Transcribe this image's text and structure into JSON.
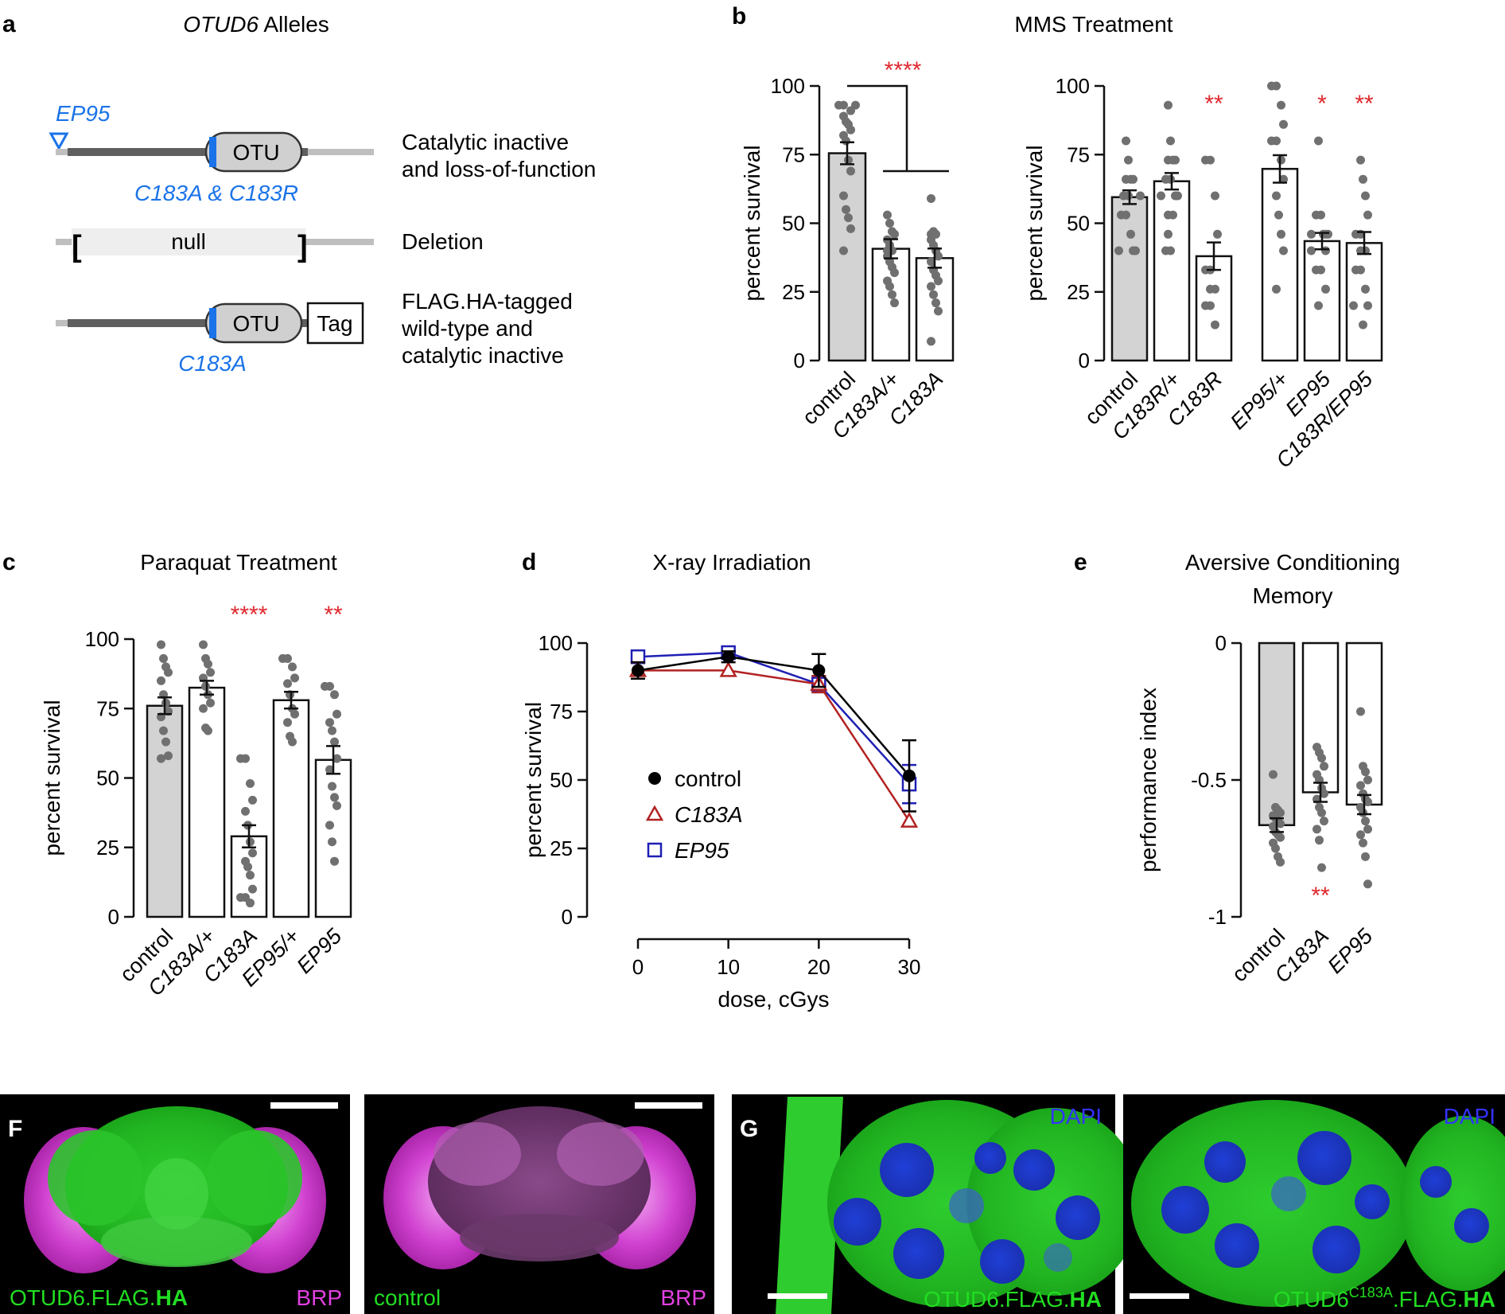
{
  "panels": {
    "a": {
      "letter": "a",
      "title_gene": "OTUD6",
      "title_rest": " Alleles",
      "ep_label": "EP95",
      "otu": "OTU",
      "mut1": "C183A & C183R",
      "mut2": "C183A",
      "null_label": "null",
      "tag_label": "Tag",
      "desc1": [
        "Catalytic inactive",
        "and loss-of-function"
      ],
      "desc2": [
        "Deletion"
      ],
      "desc3": [
        "FLAG.HA-tagged",
        "wild-type and",
        "catalytic inactive"
      ],
      "colors": {
        "blue": "#1a73e8",
        "dark": "#5f5f5f",
        "light": "#bfbfbf",
        "box": "#d0d0d0"
      }
    },
    "b": {
      "letter": "b",
      "title": "MMS Treatment"
    },
    "c": {
      "letter": "c",
      "title": "Paraquat Treatment"
    },
    "d": {
      "letter": "d",
      "title": "X-ray Irradiation"
    },
    "e": {
      "letter": "e",
      "title": [
        "Aversive Conditioning",
        "Memory"
      ]
    },
    "f": {
      "letter": "F",
      "img1": {
        "label_main": "OTUD6.FLAG.",
        "label_bold": "HA",
        "label_right": "BRP"
      },
      "img2": {
        "label_main": "control",
        "label_right": "BRP"
      }
    },
    "g": {
      "letter": "G",
      "img1": {
        "label_main": "OTUD6.FLAG.",
        "label_bold": "HA",
        "label_top": "DAPI"
      },
      "img2": {
        "label_main": "OTUD6",
        "label_sup": "C183A",
        "label_mid": ".FLAG.",
        "label_bold": "HA",
        "label_top": "DAPI"
      }
    }
  },
  "chart_data": [
    {
      "id": "b-left",
      "type": "bar",
      "ylabel": "percent survival",
      "ylim": [
        0,
        100
      ],
      "yticks": [
        0,
        25,
        50,
        75,
        100
      ],
      "categories": [
        "control",
        "C183A/+",
        "C183A"
      ],
      "italic": [
        false,
        true,
        true
      ],
      "values": [
        75.5,
        40.7,
        37.3
      ],
      "sem": [
        4,
        3.5,
        3.5
      ],
      "fills": [
        "#d3d3d3",
        "#ffffff",
        "#ffffff"
      ],
      "points": [
        [
          93,
          93,
          93,
          91,
          89,
          87,
          86,
          84,
          82,
          80,
          73,
          69,
          60,
          55,
          52,
          48,
          40
        ],
        [
          53,
          50,
          47,
          46,
          44,
          42,
          40,
          40,
          38,
          36,
          34,
          32,
          29,
          27,
          24,
          21
        ],
        [
          59,
          47,
          46,
          46,
          44,
          42,
          40,
          38,
          36,
          33,
          31,
          29,
          27,
          24,
          21,
          18,
          7
        ]
      ],
      "annotations": [
        {
          "text": "****",
          "x": 0.5
        }
      ]
    },
    {
      "id": "b-right",
      "type": "bar",
      "ylabel": "percent survival",
      "ylim": [
        0,
        100
      ],
      "yticks": [
        0,
        25,
        50,
        75,
        100
      ],
      "categories": [
        "control",
        "C183R/+",
        "C183R",
        "EP95/+",
        "EP95",
        "C183R/EP95"
      ],
      "italic": [
        false,
        true,
        true,
        true,
        true,
        true
      ],
      "values": [
        59.5,
        65.3,
        38,
        69.8,
        43.5,
        42.8
      ],
      "sem": [
        2.5,
        3,
        5,
        5,
        3,
        4
      ],
      "fills": [
        "#d3d3d3",
        "#ffffff",
        "#ffffff",
        "#ffffff",
        "#ffffff",
        "#ffffff"
      ],
      "points": [
        [
          80,
          73,
          66,
          66,
          66,
          60,
          60,
          60,
          53,
          53,
          46,
          40,
          40,
          40
        ],
        [
          93,
          80,
          73,
          73,
          73,
          66,
          66,
          60,
          60,
          60,
          53,
          53,
          46,
          40,
          40
        ],
        [
          73,
          73,
          60,
          46,
          33,
          33,
          26,
          26,
          20,
          20,
          13
        ],
        [
          100,
          100,
          93,
          86,
          80,
          80,
          73,
          66,
          60,
          53,
          46,
          40,
          26
        ],
        [
          80,
          53,
          53,
          46,
          46,
          46,
          46,
          40,
          40,
          33,
          33,
          26,
          20
        ],
        [
          73,
          66,
          60,
          53,
          46,
          46,
          40,
          40,
          33,
          33,
          26,
          20,
          20,
          13
        ]
      ],
      "annotations": [
        {
          "text": "**",
          "x": 2
        },
        {
          "text": "*",
          "x": 4
        },
        {
          "text": "**",
          "x": 5
        }
      ]
    },
    {
      "id": "c",
      "type": "bar",
      "ylabel": "percent survival",
      "ylim": [
        0,
        100
      ],
      "yticks": [
        0,
        25,
        50,
        75,
        100
      ],
      "categories": [
        "control",
        "C183A/+",
        "C183A",
        "EP95/+",
        "EP95"
      ],
      "italic": [
        false,
        true,
        true,
        true,
        true
      ],
      "values": [
        76,
        82.5,
        29,
        78,
        56.5
      ],
      "sem": [
        3,
        2.5,
        4,
        3,
        5
      ],
      "fills": [
        "#d3d3d3",
        "#ffffff",
        "#ffffff",
        "#ffffff",
        "#ffffff"
      ],
      "points": [
        [
          98,
          93,
          90,
          88,
          85,
          80,
          77,
          74,
          72,
          67,
          63,
          58,
          57
        ],
        [
          98,
          93,
          91,
          88,
          86,
          83,
          80,
          77,
          75,
          68,
          67
        ],
        [
          57,
          57,
          48,
          42,
          38,
          33,
          27,
          23,
          20,
          18,
          15,
          10,
          7,
          7,
          5
        ],
        [
          93,
          93,
          90,
          86,
          84,
          80,
          75,
          73,
          70,
          65,
          63
        ],
        [
          83,
          83,
          80,
          73,
          70,
          67,
          63,
          57,
          53,
          47,
          43,
          40,
          33,
          27,
          20
        ]
      ],
      "annotations": [
        {
          "text": "****",
          "x": 2
        },
        {
          "text": "**",
          "x": 4
        }
      ]
    },
    {
      "id": "d",
      "type": "line",
      "xlabel": "dose, cGys",
      "ylabel": "percent survival",
      "xlim": [
        0,
        30
      ],
      "ylim": [
        0,
        100
      ],
      "xticks": [
        0,
        10,
        20,
        30
      ],
      "yticks": [
        0,
        25,
        50,
        75,
        100
      ],
      "series": [
        {
          "name": "control",
          "marker": "circle",
          "color": "#000000",
          "x": [
            0,
            10,
            20,
            30
          ],
          "y": [
            90,
            95,
            90,
            51.5
          ],
          "err": [
            3,
            2,
            6,
            13
          ]
        },
        {
          "name": "C183A",
          "marker": "triangle",
          "color": "#b22222",
          "x": [
            0,
            10,
            20,
            30
          ],
          "y": [
            90,
            90,
            85,
            35
          ],
          "err": [
            3,
            0,
            3,
            0
          ]
        },
        {
          "name": "EP95",
          "marker": "square",
          "color": "#1f1fb4",
          "x": [
            0,
            10,
            20,
            30
          ],
          "y": [
            95,
            96.5,
            85,
            48.5
          ],
          "err": [
            0,
            0,
            3,
            7
          ]
        }
      ]
    },
    {
      "id": "e",
      "type": "bar",
      "ylabel": "performance index",
      "ylim": [
        -1,
        0
      ],
      "yticks": [
        0,
        -0.5,
        -1
      ],
      "categories": [
        "control",
        "C183A",
        "EP95"
      ],
      "italic": [
        false,
        true,
        true
      ],
      "values": [
        -0.665,
        -0.545,
        -0.59
      ],
      "sem": [
        0.025,
        0.035,
        0.035
      ],
      "fills": [
        "#d3d3d3",
        "#ffffff",
        "#ffffff"
      ],
      "points": [
        [
          -0.48,
          -0.6,
          -0.61,
          -0.62,
          -0.63,
          -0.64,
          -0.65,
          -0.66,
          -0.67,
          -0.69,
          -0.7,
          -0.71,
          -0.73,
          -0.75,
          -0.78,
          -0.8
        ],
        [
          -0.38,
          -0.4,
          -0.42,
          -0.45,
          -0.48,
          -0.5,
          -0.53,
          -0.55,
          -0.57,
          -0.6,
          -0.62,
          -0.65,
          -0.68,
          -0.72,
          -0.82
        ],
        [
          -0.25,
          -0.45,
          -0.47,
          -0.5,
          -0.52,
          -0.55,
          -0.57,
          -0.58,
          -0.6,
          -0.62,
          -0.65,
          -0.68,
          -0.7,
          -0.73,
          -0.78,
          -0.88
        ]
      ],
      "annotations": [
        {
          "text": "**",
          "x": 1,
          "below": true
        }
      ]
    }
  ]
}
